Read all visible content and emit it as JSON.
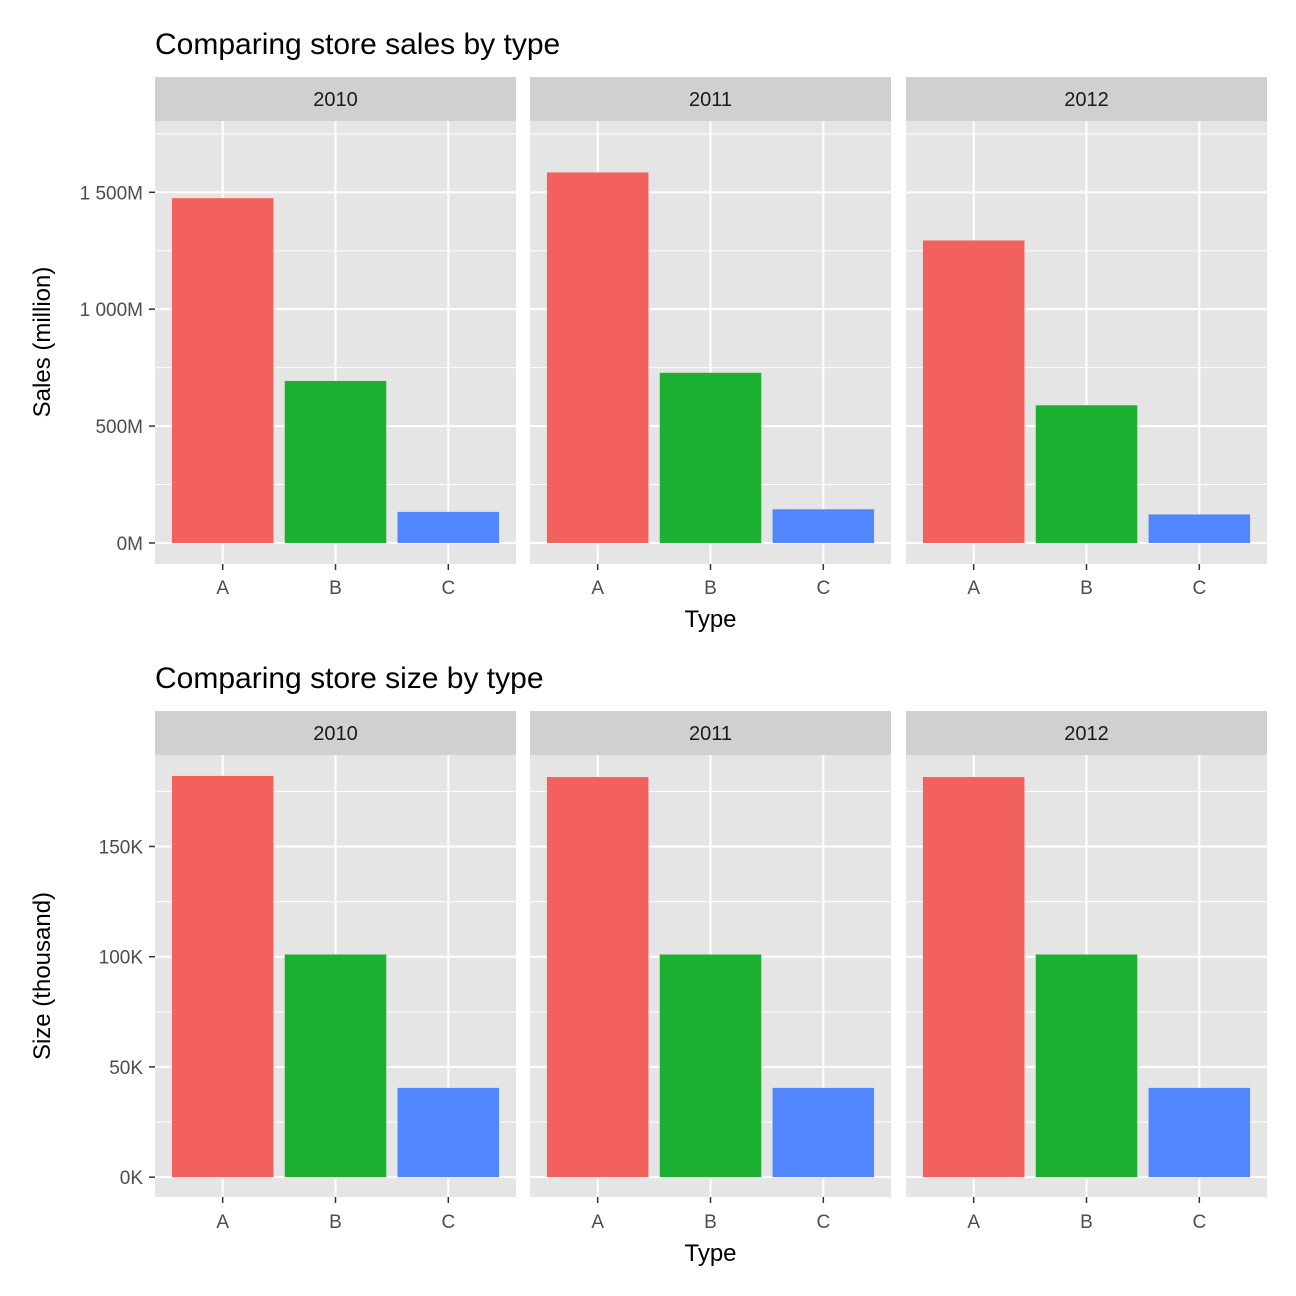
{
  "chart_data": [
    {
      "type": "bar",
      "title": "Comparing store sales by type",
      "xlabel": "Type",
      "ylabel": "Sales (million)",
      "categories": [
        "A",
        "B",
        "C"
      ],
      "facets": [
        {
          "label": "2010",
          "values": [
            1475,
            693,
            133
          ]
        },
        {
          "label": "2011",
          "values": [
            1585,
            728,
            144
          ]
        },
        {
          "label": "2012",
          "values": [
            1294,
            589,
            122
          ]
        }
      ],
      "ylim": [
        -90,
        1805
      ],
      "yticks": [
        0,
        500,
        1000,
        1500
      ],
      "ytick_labels": [
        "0M",
        "500M",
        "1 000M",
        "1 500M"
      ],
      "grid": true,
      "legend": "none"
    },
    {
      "type": "bar",
      "title": "Comparing store size by type",
      "xlabel": "Type",
      "ylabel": "Size (thousand)",
      "categories": [
        "A",
        "B",
        "C"
      ],
      "facets": [
        {
          "label": "2010",
          "values": [
            182,
            101,
            40.5
          ]
        },
        {
          "label": "2011",
          "values": [
            181.5,
            101,
            40.5
          ]
        },
        {
          "label": "2012",
          "values": [
            181.5,
            101,
            40.5
          ]
        }
      ],
      "ylim": [
        -9,
        191.5
      ],
      "yticks": [
        0,
        50,
        100,
        150
      ],
      "ytick_labels": [
        "0K",
        "50K",
        "100K",
        "150K"
      ],
      "grid": true,
      "legend": "none"
    }
  ],
  "colors": {
    "A": "#f2615b",
    "B": "#1bb02f",
    "C": "#5186fd",
    "panel_bg": "#e5e5e5",
    "strip_bg": "#d0d0d0",
    "grid": "#ffffff",
    "tick": "#333333"
  }
}
